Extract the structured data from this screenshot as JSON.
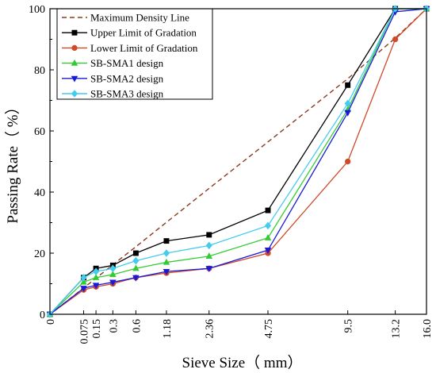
{
  "chart_data": {
    "type": "line",
    "xlabel": "Sieve Size（ mm）",
    "ylabel": "Passing Rate（ %）",
    "ylim": [
      0,
      100
    ],
    "yticks": [
      0,
      20,
      40,
      60,
      80,
      100
    ],
    "x_scale": "power 0.45 (sieve size)",
    "x": [
      0,
      0.075,
      0.15,
      0.3,
      0.6,
      1.18,
      2.36,
      4.75,
      9.5,
      13.2,
      16.0
    ],
    "x_tick_labels": [
      "0",
      "0.075",
      "0.15",
      "0.3",
      "0.6",
      "1.18",
      "2.36",
      "4.75",
      "9.5",
      "13.2",
      "16.0"
    ],
    "grid": false,
    "legend_position": "top-left",
    "series": [
      {
        "name": "Maximum Density Line",
        "color": "#8B3A1E",
        "dash": true,
        "marker": "none",
        "x": [
          0,
          0.075,
          0.15,
          0.3,
          0.6,
          1.18,
          2.36,
          4.75,
          9.5,
          13.2,
          16.0
        ],
        "values": [
          0,
          8.6,
          11.8,
          16.2,
          22.1,
          30.1,
          41.2,
          56.4,
          77.1,
          90.4,
          100
        ]
      },
      {
        "name": "Upper Limit of Gradation",
        "color": "#000000",
        "marker": "square",
        "x": [
          0,
          0.075,
          0.15,
          0.3,
          0.6,
          1.18,
          2.36,
          4.75,
          9.5,
          13.2,
          16.0
        ],
        "values": [
          0,
          12,
          15,
          16,
          20,
          24,
          26,
          34,
          75,
          100,
          100
        ]
      },
      {
        "name": "Lower Limit of Gradation",
        "color": "#D04A2A",
        "marker": "circle",
        "x": [
          0,
          0.075,
          0.15,
          0.3,
          0.6,
          1.18,
          2.36,
          4.75,
          9.5,
          13.2,
          16.0
        ],
        "values": [
          0,
          8,
          9,
          10,
          12,
          13.5,
          15,
          20,
          50,
          90,
          100
        ]
      },
      {
        "name": "SB-SMA1 design",
        "color": "#33CC33",
        "marker": "triangle-up",
        "x": [
          0,
          0.075,
          0.15,
          0.3,
          0.6,
          1.18,
          2.36,
          4.75,
          9.5,
          13.2,
          16.0
        ],
        "values": [
          0,
          10.5,
          12,
          13,
          15,
          17,
          19,
          25,
          67,
          100,
          100
        ]
      },
      {
        "name": "SB-SMA2 design",
        "color": "#1A1AD9",
        "marker": "triangle-down",
        "x": [
          0,
          0.075,
          0.15,
          0.3,
          0.6,
          1.18,
          2.36,
          4.75,
          9.5,
          13.2,
          16.0
        ],
        "values": [
          0,
          8.5,
          9.5,
          10.5,
          12,
          14,
          15,
          21,
          66,
          99,
          100
        ]
      },
      {
        "name": "SB-SMA3 design",
        "color": "#44CCEE",
        "marker": "diamond",
        "x": [
          0,
          0.075,
          0.15,
          0.3,
          0.6,
          1.18,
          2.36,
          4.75,
          9.5,
          13.2,
          16.0
        ],
        "values": [
          0,
          12,
          14,
          15,
          17.5,
          20,
          22.5,
          29,
          69,
          100,
          100
        ]
      }
    ]
  }
}
